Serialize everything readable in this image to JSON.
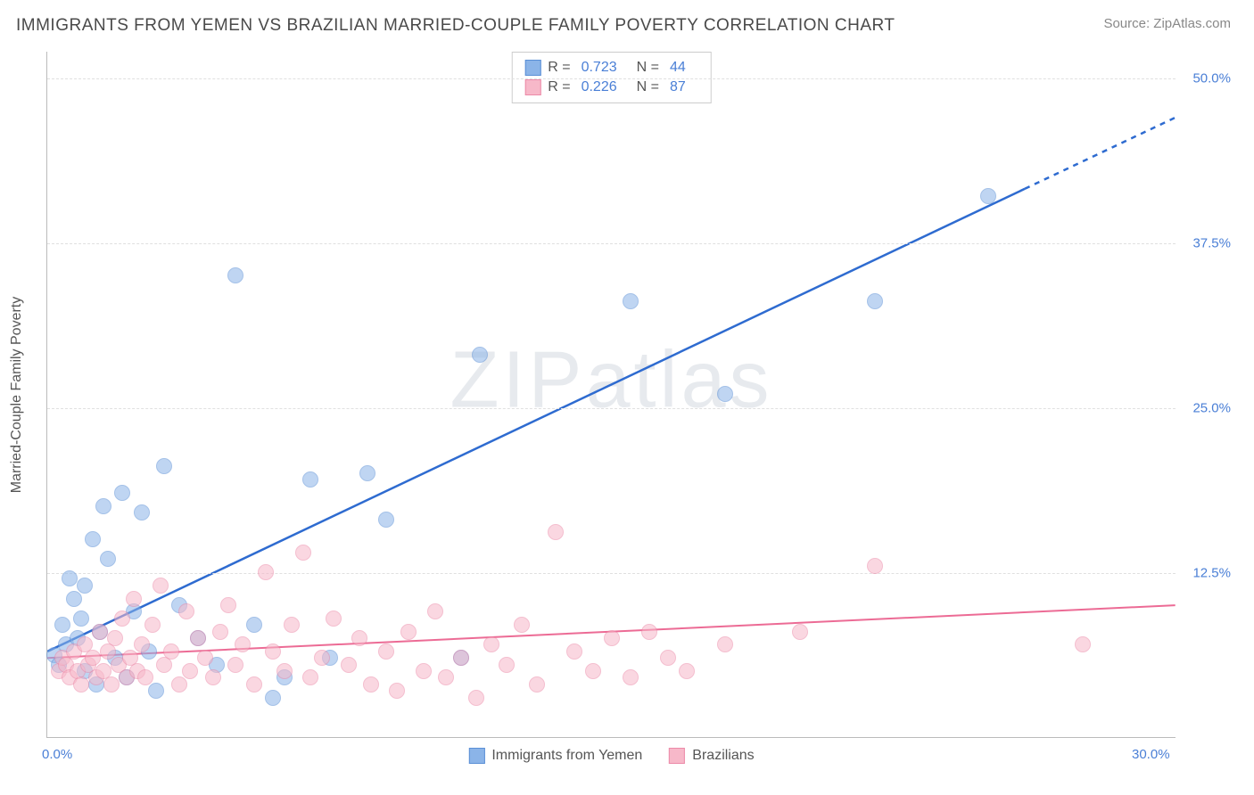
{
  "header": {
    "title": "IMMIGRANTS FROM YEMEN VS BRAZILIAN MARRIED-COUPLE FAMILY POVERTY CORRELATION CHART",
    "source": "Source: ZipAtlas.com"
  },
  "watermark": "ZIPatlas",
  "chart": {
    "type": "scatter",
    "ylabel": "Married-Couple Family Poverty",
    "xlim": [
      0,
      30
    ],
    "ylim": [
      0,
      52
    ],
    "x_ticks": [
      {
        "v": 0,
        "label": "0.0%"
      },
      {
        "v": 30,
        "label": "30.0%"
      }
    ],
    "y_ticks": [
      {
        "v": 12.5,
        "label": "12.5%"
      },
      {
        "v": 25.0,
        "label": "25.0%"
      },
      {
        "v": 37.5,
        "label": "37.5%"
      },
      {
        "v": 50.0,
        "label": "50.0%"
      }
    ],
    "point_radius": 9,
    "point_opacity": 0.55,
    "background_color": "#ffffff",
    "grid_color": "#e0e0e0",
    "series": [
      {
        "name": "Immigrants from Yemen",
        "color": "#8bb4e8",
        "stroke": "#5a8fd6",
        "trend": {
          "color": "#2e6bd0",
          "width": 2.5,
          "x1": 0,
          "y1": 6.5,
          "x2": 30,
          "y2": 47.0,
          "dash_after_x": 26
        },
        "stats": {
          "R": "0.723",
          "N": "44"
        },
        "points": [
          [
            0.2,
            6.2
          ],
          [
            0.3,
            5.5
          ],
          [
            0.4,
            8.5
          ],
          [
            0.5,
            7.0
          ],
          [
            0.6,
            12.0
          ],
          [
            0.7,
            10.5
          ],
          [
            0.8,
            7.5
          ],
          [
            0.9,
            9.0
          ],
          [
            1.0,
            5.0
          ],
          [
            1.0,
            11.5
          ],
          [
            1.2,
            15.0
          ],
          [
            1.3,
            4.0
          ],
          [
            1.4,
            8.0
          ],
          [
            1.5,
            17.5
          ],
          [
            1.6,
            13.5
          ],
          [
            1.8,
            6.0
          ],
          [
            2.0,
            18.5
          ],
          [
            2.1,
            4.5
          ],
          [
            2.3,
            9.5
          ],
          [
            2.5,
            17.0
          ],
          [
            2.7,
            6.5
          ],
          [
            2.9,
            3.5
          ],
          [
            3.1,
            20.5
          ],
          [
            3.5,
            10.0
          ],
          [
            4.0,
            7.5
          ],
          [
            4.5,
            5.5
          ],
          [
            5.0,
            35.0
          ],
          [
            5.5,
            8.5
          ],
          [
            6.0,
            3.0
          ],
          [
            6.3,
            4.5
          ],
          [
            7.0,
            19.5
          ],
          [
            7.5,
            6.0
          ],
          [
            8.5,
            20.0
          ],
          [
            9.0,
            16.5
          ],
          [
            11.0,
            6.0
          ],
          [
            11.5,
            29.0
          ],
          [
            15.5,
            33.0
          ],
          [
            18.0,
            26.0
          ],
          [
            22.0,
            33.0
          ],
          [
            25.0,
            41.0
          ]
        ]
      },
      {
        "name": "Brazilians",
        "color": "#f7b8c9",
        "stroke": "#ec8aa8",
        "trend": {
          "color": "#ec6b95",
          "width": 2,
          "x1": 0,
          "y1": 6.0,
          "x2": 30,
          "y2": 10.0,
          "dash_after_x": 30
        },
        "stats": {
          "R": "0.226",
          "N": "87"
        },
        "points": [
          [
            0.3,
            5.0
          ],
          [
            0.4,
            6.0
          ],
          [
            0.5,
            5.5
          ],
          [
            0.6,
            4.5
          ],
          [
            0.7,
            6.5
          ],
          [
            0.8,
            5.0
          ],
          [
            0.9,
            4.0
          ],
          [
            1.0,
            7.0
          ],
          [
            1.1,
            5.5
          ],
          [
            1.2,
            6.0
          ],
          [
            1.3,
            4.5
          ],
          [
            1.4,
            8.0
          ],
          [
            1.5,
            5.0
          ],
          [
            1.6,
            6.5
          ],
          [
            1.7,
            4.0
          ],
          [
            1.8,
            7.5
          ],
          [
            1.9,
            5.5
          ],
          [
            2.0,
            9.0
          ],
          [
            2.1,
            4.5
          ],
          [
            2.2,
            6.0
          ],
          [
            2.3,
            10.5
          ],
          [
            2.4,
            5.0
          ],
          [
            2.5,
            7.0
          ],
          [
            2.6,
            4.5
          ],
          [
            2.8,
            8.5
          ],
          [
            3.0,
            11.5
          ],
          [
            3.1,
            5.5
          ],
          [
            3.3,
            6.5
          ],
          [
            3.5,
            4.0
          ],
          [
            3.7,
            9.5
          ],
          [
            3.8,
            5.0
          ],
          [
            4.0,
            7.5
          ],
          [
            4.2,
            6.0
          ],
          [
            4.4,
            4.5
          ],
          [
            4.6,
            8.0
          ],
          [
            4.8,
            10.0
          ],
          [
            5.0,
            5.5
          ],
          [
            5.2,
            7.0
          ],
          [
            5.5,
            4.0
          ],
          [
            5.8,
            12.5
          ],
          [
            6.0,
            6.5
          ],
          [
            6.3,
            5.0
          ],
          [
            6.5,
            8.5
          ],
          [
            6.8,
            14.0
          ],
          [
            7.0,
            4.5
          ],
          [
            7.3,
            6.0
          ],
          [
            7.6,
            9.0
          ],
          [
            8.0,
            5.5
          ],
          [
            8.3,
            7.5
          ],
          [
            8.6,
            4.0
          ],
          [
            9.0,
            6.5
          ],
          [
            9.3,
            3.5
          ],
          [
            9.6,
            8.0
          ],
          [
            10.0,
            5.0
          ],
          [
            10.3,
            9.5
          ],
          [
            10.6,
            4.5
          ],
          [
            11.0,
            6.0
          ],
          [
            11.4,
            3.0
          ],
          [
            11.8,
            7.0
          ],
          [
            12.2,
            5.5
          ],
          [
            12.6,
            8.5
          ],
          [
            13.0,
            4.0
          ],
          [
            13.5,
            15.5
          ],
          [
            14.0,
            6.5
          ],
          [
            14.5,
            5.0
          ],
          [
            15.0,
            7.5
          ],
          [
            15.5,
            4.5
          ],
          [
            16.0,
            8.0
          ],
          [
            16.5,
            6.0
          ],
          [
            17.0,
            5.0
          ],
          [
            18.0,
            7.0
          ],
          [
            20.0,
            8.0
          ],
          [
            22.0,
            13.0
          ],
          [
            27.5,
            7.0
          ]
        ]
      }
    ],
    "legend_bottom": [
      {
        "label": "Immigrants from Yemen",
        "fill": "#8bb4e8",
        "stroke": "#5a8fd6"
      },
      {
        "label": "Brazilians",
        "fill": "#f7b8c9",
        "stroke": "#ec8aa8"
      }
    ]
  }
}
